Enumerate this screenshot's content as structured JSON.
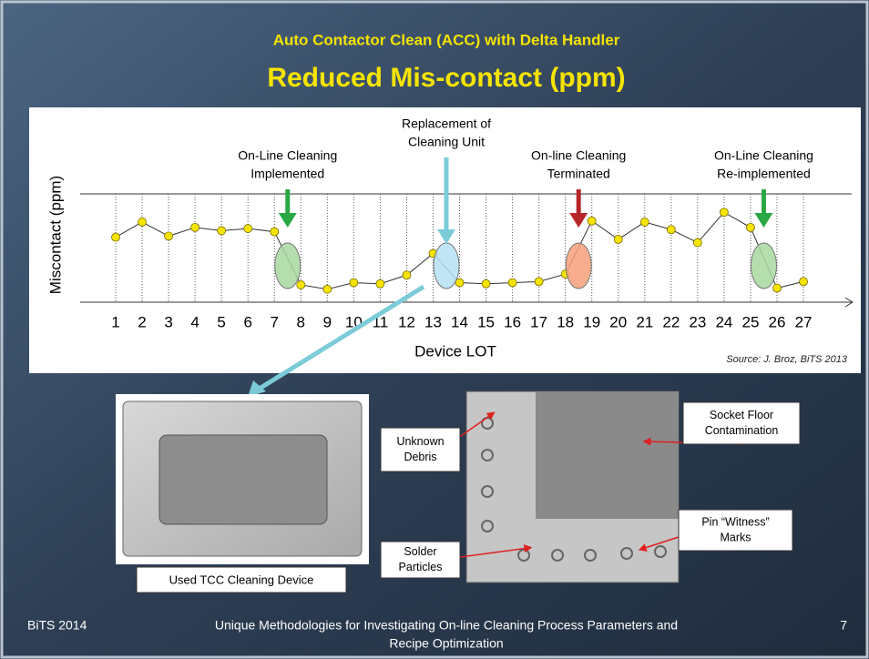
{
  "slide": {
    "header": "Auto Contactor Clean (ACC) with Delta Handler",
    "title": "Reduced Mis-contact (ppm)",
    "source": "Source: J. Broz, BiTS 2013",
    "photo_left_caption": "Used TCC Cleaning Device",
    "callouts": [
      [
        "Unknown",
        "Debris"
      ],
      [
        "Socket Floor",
        "Contamination"
      ],
      [
        "Pin “Witness”",
        "Marks"
      ],
      [
        "Solder",
        "Particles"
      ]
    ],
    "footer_left": "BiTS 2014",
    "footer_center": [
      "Unique Methodologies for Investigating On-line Cleaning Process Parameters and",
      "Recipe Optimization"
    ],
    "page_number": "7"
  },
  "chart_data": {
    "type": "line",
    "x_label": "Device LOT",
    "y_label": "Miscontact (ppm)",
    "categories": [
      "1",
      "2",
      "3",
      "4",
      "5",
      "6",
      "7",
      "8",
      "9",
      "10",
      "11",
      "12",
      "13",
      "14",
      "15",
      "16",
      "17",
      "18",
      "19",
      "20",
      "21",
      "22",
      "23",
      "24",
      "25",
      "26",
      "27"
    ],
    "values": [
      60,
      74,
      61,
      69,
      66,
      68,
      65,
      16,
      12,
      18,
      17,
      25,
      45,
      18,
      17,
      18,
      19,
      26,
      75,
      58,
      74,
      67,
      55,
      83,
      69,
      13,
      19
    ],
    "color": "#333333",
    "marker_color": "#f5e400",
    "ylim": [
      0,
      100
    ],
    "annotations": [
      {
        "text": [
          "On-Line Cleaning",
          "Implemented"
        ],
        "color": "#2aa844",
        "fill": "#a8d8a0"
      },
      {
        "text": [
          "Replacement of",
          "Cleaning Unit"
        ],
        "color": "#7ccbd8",
        "fill": "#b5e2f4"
      },
      {
        "text": [
          "On-line Cleaning",
          "Terminated"
        ],
        "color": "#b5262a",
        "fill": "#f7a07a"
      },
      {
        "text": [
          "On-Line Cleaning",
          "Re-implemented"
        ],
        "color": "#2aa844",
        "fill": "#a8d8a0"
      }
    ]
  }
}
